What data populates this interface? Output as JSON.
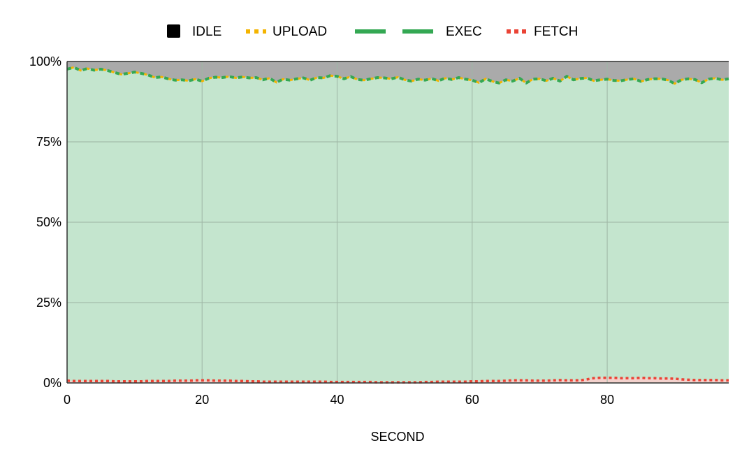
{
  "chart_data": {
    "type": "area",
    "title": "",
    "xlabel": "SECOND",
    "ylabel": "",
    "xlim": [
      0,
      98
    ],
    "ylim": [
      0,
      100
    ],
    "x_ticks": [
      0,
      20,
      40,
      60,
      80
    ],
    "x_tick_labels": [
      "0",
      "20",
      "40",
      "60",
      "80"
    ],
    "y_ticks": [
      0,
      25,
      50,
      75,
      100
    ],
    "y_tick_labels": [
      "0%",
      "25%",
      "50%",
      "75%",
      "100%"
    ],
    "grid": true,
    "legend_position": "top",
    "x": [
      0,
      1,
      2,
      3,
      4,
      5,
      6,
      7,
      8,
      9,
      10,
      11,
      12,
      13,
      14,
      15,
      16,
      17,
      18,
      19,
      20,
      21,
      22,
      23,
      24,
      25,
      26,
      27,
      28,
      29,
      30,
      31,
      32,
      33,
      34,
      35,
      36,
      37,
      38,
      39,
      40,
      41,
      42,
      43,
      44,
      45,
      46,
      47,
      48,
      49,
      50,
      51,
      52,
      53,
      54,
      55,
      56,
      57,
      58,
      59,
      60,
      61,
      62,
      63,
      64,
      65,
      66,
      67,
      68,
      69,
      70,
      71,
      72,
      73,
      74,
      75,
      76,
      77,
      78,
      79,
      80,
      81,
      82,
      83,
      84,
      85,
      86,
      87,
      88,
      89,
      90,
      91,
      92,
      93,
      94,
      95,
      96,
      97,
      98
    ],
    "series": [
      {
        "name": "IDLE",
        "color": "#000000",
        "fill": "#aaaaaa",
        "values_cumulative": [
          100,
          100,
          100,
          100,
          100,
          100,
          100,
          100,
          100,
          100,
          100,
          100,
          100,
          100,
          100,
          100,
          100,
          100,
          100,
          100,
          100,
          100,
          100,
          100,
          100,
          100,
          100,
          100,
          100,
          100,
          100,
          100,
          100,
          100,
          100,
          100,
          100,
          100,
          100,
          100,
          100,
          100,
          100,
          100,
          100,
          100,
          100,
          100,
          100,
          100,
          100,
          100,
          100,
          100,
          100,
          100,
          100,
          100,
          100,
          100,
          100,
          100,
          100,
          100,
          100,
          100,
          100,
          100,
          100,
          100,
          100,
          100,
          100,
          100,
          100,
          100,
          100,
          100,
          100,
          100,
          100,
          100,
          100,
          100,
          100,
          100,
          100,
          100,
          100,
          100,
          100,
          100,
          100,
          100,
          100,
          100,
          100,
          100,
          100
        ]
      },
      {
        "name": "UPLOAD",
        "color": "#f4b400",
        "line_style": "dotted",
        "values_cumulative": [
          97.6,
          98.2,
          97.2,
          97.8,
          97.3,
          97.6,
          97.2,
          96.6,
          96.0,
          96.3,
          96.7,
          96.3,
          95.8,
          95.0,
          95.2,
          94.6,
          94.2,
          94.3,
          94.0,
          94.5,
          93.9,
          94.8,
          95.1,
          95.0,
          95.3,
          94.9,
          95.2,
          94.9,
          95.0,
          94.3,
          94.8,
          93.5,
          94.5,
          94.2,
          94.6,
          94.9,
          94.2,
          95.0,
          94.9,
          95.6,
          95.4,
          94.6,
          95.3,
          94.4,
          94.2,
          94.6,
          95.0,
          94.9,
          94.6,
          95.1,
          94.3,
          93.9,
          94.5,
          94.2,
          94.7,
          94.0,
          94.8,
          94.4,
          95.0,
          94.5,
          94.2,
          93.4,
          94.6,
          93.8,
          93.3,
          94.3,
          93.9,
          94.8,
          93.3,
          94.5,
          94.6,
          94.0,
          94.8,
          93.9,
          95.4,
          94.3,
          94.7,
          94.9,
          94.0,
          94.3,
          94.5,
          94.1,
          94.0,
          94.4,
          94.6,
          93.8,
          94.4,
          94.6,
          94.6,
          94.2,
          93.1,
          94.3,
          94.6,
          94.4,
          93.4,
          94.5,
          94.8,
          94.3,
          94.6
        ]
      },
      {
        "name": "EXEC",
        "color": "#34a853",
        "fill": "#c4e5ce",
        "line_style": "dashed",
        "values_cumulative": [
          97.6,
          98.2,
          97.2,
          97.8,
          97.3,
          97.6,
          97.2,
          96.6,
          96.0,
          96.3,
          96.7,
          96.3,
          95.8,
          95.0,
          95.2,
          94.6,
          94.2,
          94.3,
          94.0,
          94.5,
          93.9,
          94.8,
          95.1,
          95.0,
          95.3,
          94.9,
          95.2,
          94.9,
          95.0,
          94.3,
          94.8,
          93.5,
          94.5,
          94.2,
          94.6,
          94.9,
          94.2,
          95.0,
          94.9,
          95.6,
          95.4,
          94.6,
          95.3,
          94.4,
          94.2,
          94.6,
          95.0,
          94.9,
          94.6,
          95.1,
          94.3,
          93.9,
          94.5,
          94.2,
          94.7,
          94.0,
          94.8,
          94.4,
          95.0,
          94.5,
          94.2,
          93.4,
          94.6,
          93.8,
          93.3,
          94.3,
          93.9,
          94.8,
          93.3,
          94.5,
          94.6,
          94.0,
          94.8,
          93.9,
          95.4,
          94.3,
          94.7,
          94.9,
          94.0,
          94.3,
          94.5,
          94.1,
          94.0,
          94.4,
          94.6,
          93.8,
          94.4,
          94.6,
          94.6,
          94.2,
          93.1,
          94.3,
          94.6,
          94.4,
          93.4,
          94.5,
          94.8,
          94.3,
          94.6
        ]
      },
      {
        "name": "FETCH",
        "color": "#ea4335",
        "fill": "#f3d1cc",
        "line_style": "dotted",
        "values_cumulative": [
          0.7,
          0.6,
          0.6,
          0.6,
          0.6,
          0.6,
          0.6,
          0.5,
          0.5,
          0.5,
          0.5,
          0.5,
          0.6,
          0.6,
          0.6,
          0.6,
          0.7,
          0.7,
          0.7,
          0.8,
          0.8,
          0.8,
          0.7,
          0.7,
          0.7,
          0.6,
          0.6,
          0.5,
          0.5,
          0.4,
          0.4,
          0.4,
          0.4,
          0.4,
          0.4,
          0.4,
          0.4,
          0.4,
          0.4,
          0.3,
          0.3,
          0.3,
          0.3,
          0.3,
          0.3,
          0.3,
          0.2,
          0.2,
          0.2,
          0.2,
          0.2,
          0.2,
          0.2,
          0.3,
          0.3,
          0.4,
          0.4,
          0.4,
          0.4,
          0.4,
          0.5,
          0.5,
          0.6,
          0.6,
          0.6,
          0.7,
          0.8,
          0.8,
          0.8,
          0.7,
          0.7,
          0.7,
          0.8,
          0.9,
          0.8,
          0.8,
          0.8,
          1.1,
          1.5,
          1.6,
          1.6,
          1.6,
          1.5,
          1.5,
          1.5,
          1.6,
          1.5,
          1.5,
          1.4,
          1.4,
          1.3,
          1.1,
          1.0,
          0.9,
          0.9,
          0.9,
          0.9,
          0.8,
          0.8
        ]
      }
    ]
  }
}
